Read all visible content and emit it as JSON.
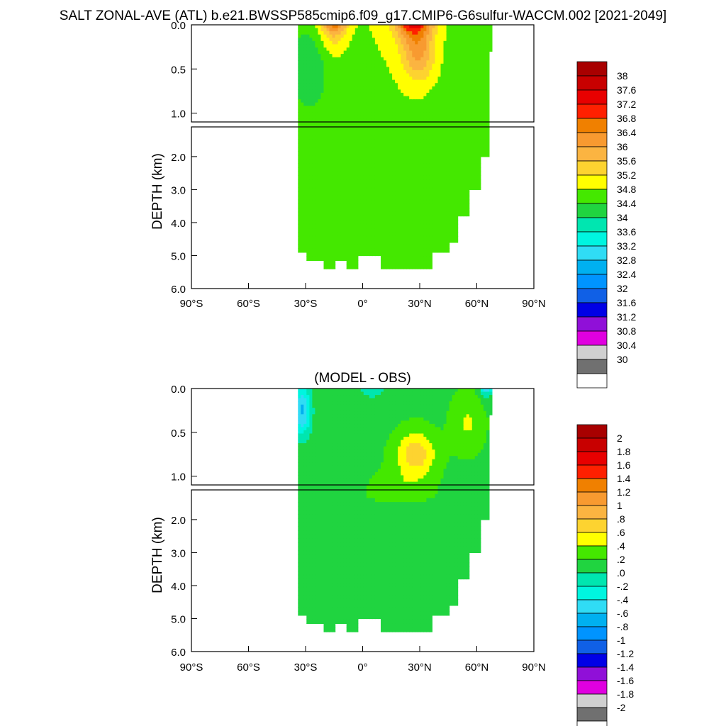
{
  "figure_title": "SALT ZONAL-AVE (ATL) b.e21.BWSSP585cmip6.f09_g17.CMIP6-G6sulfur-WACCM.002 [2021-2049]",
  "chart_data": [
    {
      "type": "heatmap",
      "title": "",
      "ylabel": "DEPTH (km)",
      "xlabel": "",
      "x_range": [
        -90,
        90
      ],
      "x_ticks": [
        -90,
        -60,
        -30,
        0,
        30,
        60,
        90
      ],
      "x_tick_labels": [
        "90°S",
        "60°S",
        "30°S",
        "0°",
        "30°N",
        "60°N",
        "90°N"
      ],
      "upper_range": [
        0,
        1.1
      ],
      "lower_range": [
        1.1,
        6.0
      ],
      "y_tick_labels_upper": [
        "0.0",
        "0.5",
        "1.0"
      ],
      "y_tick_labels_lower": [
        "2.0",
        "3.0",
        "4.0",
        "5.0",
        "6.0"
      ],
      "y_ticks_upper": [
        0,
        0.5,
        1.0
      ],
      "y_ticks_lower": [
        2,
        3,
        4,
        5,
        6
      ],
      "colorbar_labels": [
        "38",
        "37.6",
        "37.2",
        "36.8",
        "36.4",
        "36",
        "35.6",
        "35.2",
        "34.8",
        "34.4",
        "34",
        "33.6",
        "33.2",
        "32.8",
        "32.4",
        "32",
        "31.6",
        "31.2",
        "30.8",
        "30.4",
        "30"
      ],
      "colorbar_colors": [
        "#a80000",
        "#c80000",
        "#e80000",
        "#ff2000",
        "#f08000",
        "#f89a30",
        "#fbb441",
        "#fdd330",
        "#ffff00",
        "#44e800",
        "#20d440",
        "#00e6b0",
        "#00f5e0",
        "#30dcf5",
        "#00b0f0",
        "#0094ff",
        "#1060e6",
        "#0000e6",
        "#9010d8",
        "#e000e0",
        "#d0d0d0",
        "#707070",
        "#ffffff"
      ],
      "fields": {
        "surface_max_salinity": 37.2,
        "deep_salinity": 34.9,
        "southern_intermediate_water": 34.4
      }
    },
    {
      "type": "heatmap",
      "title": "(MODEL - OBS)",
      "ylabel": "DEPTH (km)",
      "xlabel": "",
      "x_range": [
        -90,
        90
      ],
      "x_ticks": [
        -90,
        -60,
        -30,
        0,
        30,
        60,
        90
      ],
      "x_tick_labels": [
        "90°S",
        "60°S",
        "30°S",
        "0°",
        "30°N",
        "60°N",
        "90°N"
      ],
      "upper_range": [
        0,
        1.1
      ],
      "lower_range": [
        1.1,
        6.0
      ],
      "y_tick_labels_upper": [
        "0.0",
        "0.5",
        "1.0"
      ],
      "y_tick_labels_lower": [
        "2.0",
        "3.0",
        "4.0",
        "5.0",
        "6.0"
      ],
      "y_ticks_upper": [
        0,
        0.5,
        1.0
      ],
      "y_ticks_lower": [
        2,
        3,
        4,
        5,
        6
      ],
      "colorbar_labels": [
        "2",
        "1.8",
        "1.6",
        "1.4",
        "1.2",
        "1",
        ".8",
        ".6",
        ".4",
        ".2",
        ".0",
        "-.2",
        "-.4",
        "-.6",
        "-.8",
        "-1",
        "-1.2",
        "-1.4",
        "-1.6",
        "-1.8",
        "-2"
      ],
      "colorbar_colors": [
        "#a80000",
        "#c80000",
        "#e80000",
        "#ff2000",
        "#f08000",
        "#f89a30",
        "#fbb441",
        "#fdd330",
        "#ffff00",
        "#44e800",
        "#20d440",
        "#00e6b0",
        "#00f5e0",
        "#30dcf5",
        "#00b0f0",
        "#0094ff",
        "#1060e6",
        "#0000e6",
        "#9010d8",
        "#e000e0",
        "#d0d0d0",
        "#707070",
        "#ffffff"
      ],
      "fields": {
        "typical_bias": 0.25,
        "subtropical_north_bias": 0.8,
        "south_surface_bias": -0.5
      }
    }
  ]
}
